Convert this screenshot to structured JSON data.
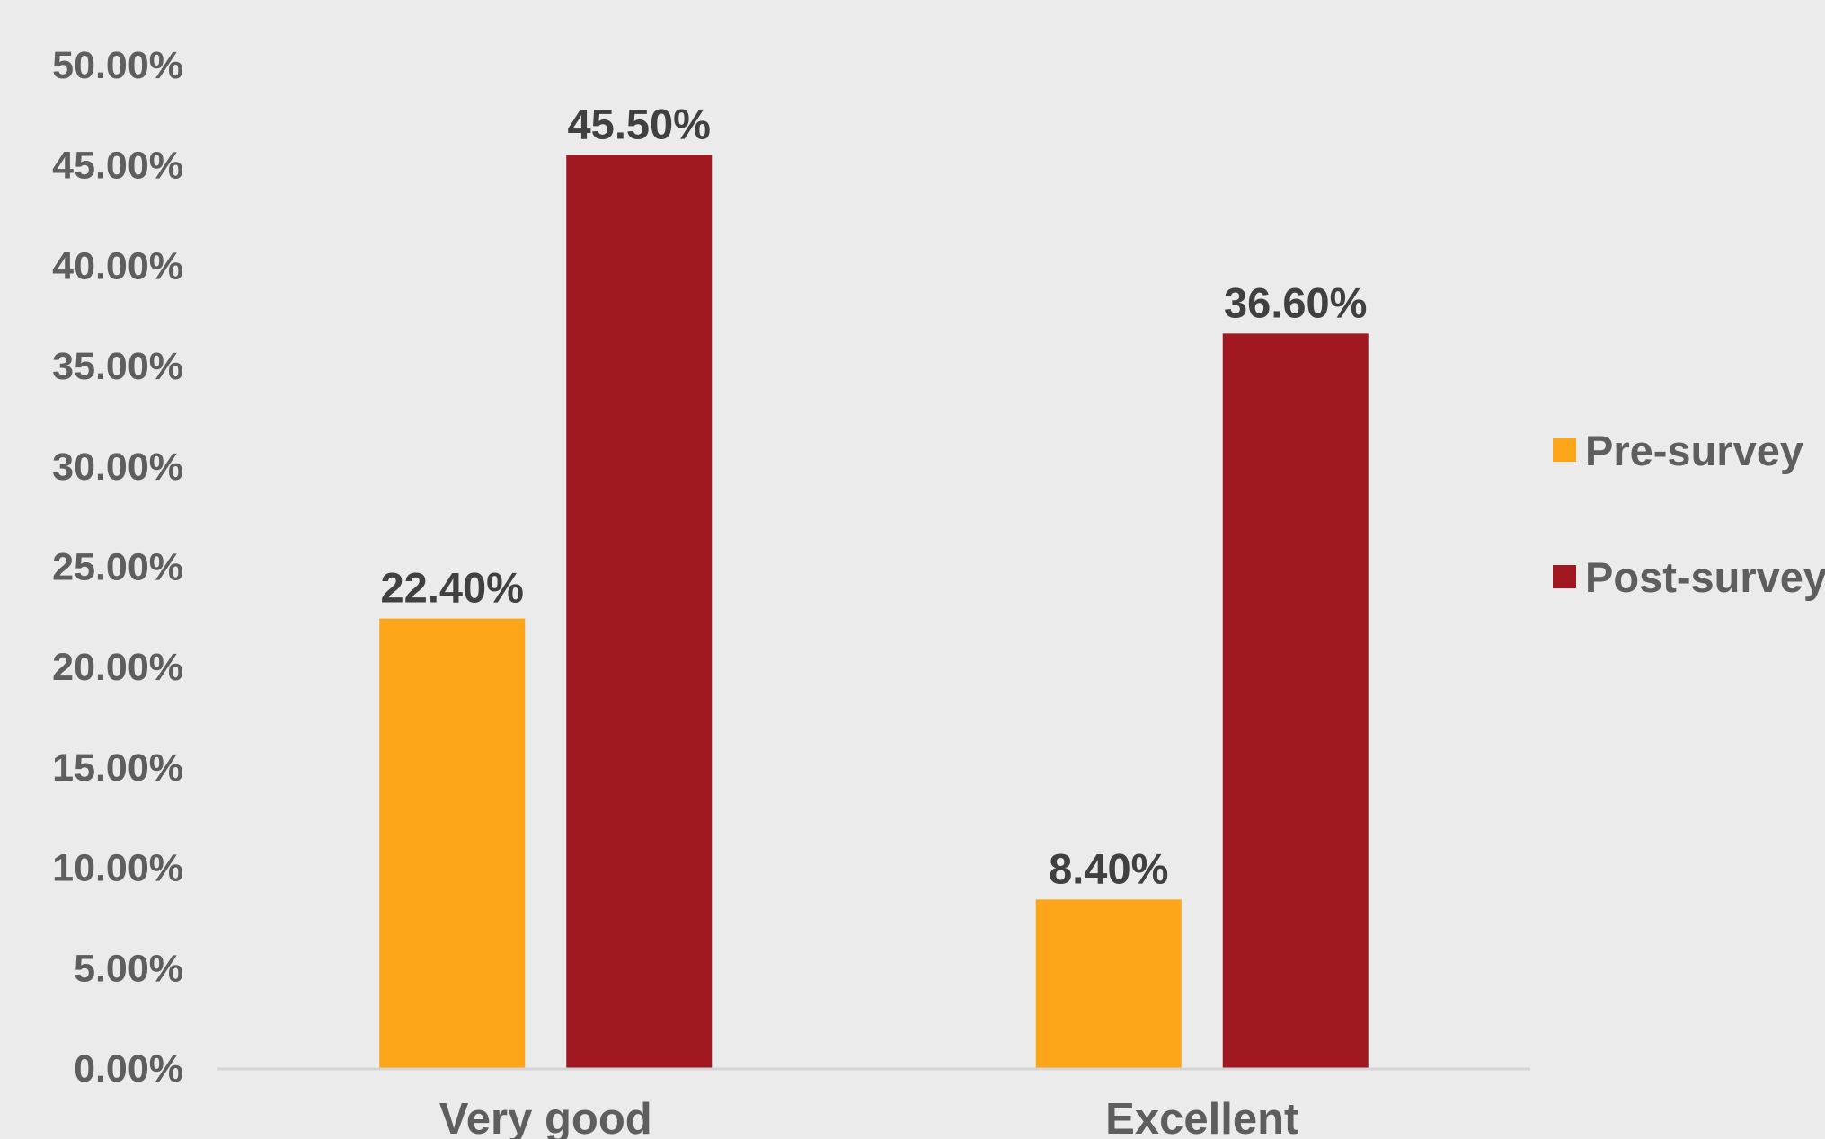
{
  "chart_data": {
    "type": "bar",
    "categories": [
      "Very good",
      "Excellent"
    ],
    "series": [
      {
        "name": "Pre-survey",
        "color": "#fda519",
        "values": [
          22.4,
          8.4
        ],
        "labels": [
          "22.40%",
          "8.40%"
        ]
      },
      {
        "name": "Post-survey",
        "color": "#a1171f",
        "values": [
          45.5,
          36.6
        ],
        "labels": [
          "45.50%",
          "36.60%"
        ]
      }
    ],
    "y_ticks": [
      "0.00%",
      "5.00%",
      "10.00%",
      "15.00%",
      "20.00%",
      "25.00%",
      "30.00%",
      "35.00%",
      "40.00%",
      "45.00%",
      "50.00%"
    ],
    "ylim": [
      0,
      50
    ],
    "ystep": 5,
    "grid": false,
    "legend_position": "right",
    "colors": {
      "background": "#ebebeb",
      "axis_line": "#d4d4d4"
    }
  }
}
